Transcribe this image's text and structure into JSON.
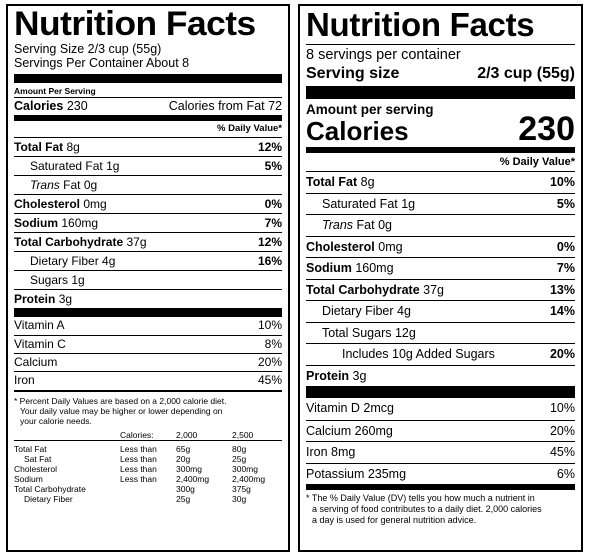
{
  "old_label": {
    "title": "Nutrition Facts",
    "serving_size": "Serving Size 2/3 cup (55g)",
    "servings": "Servings Per Container About 8",
    "amount_per_serving": "Amount Per Serving",
    "calories_label": "Calories",
    "calories_value": "230",
    "calories_from_fat": "Calories from Fat 72",
    "daily_value_header": "% Daily Value*",
    "nutrients": [
      {
        "name": "Total Fat",
        "amount": "8g",
        "pct": "12%"
      },
      {
        "name": "Saturated Fat",
        "amount": "1g",
        "pct": "5%"
      },
      {
        "name_italic": "Trans",
        "name": "Fat",
        "amount": "0g",
        "pct": ""
      },
      {
        "name": "Cholesterol",
        "amount": "0mg",
        "pct": "0%"
      },
      {
        "name": "Sodium",
        "amount": "160mg",
        "pct": "7%"
      },
      {
        "name": "Total Carbohydrate",
        "amount": "37g",
        "pct": "12%"
      },
      {
        "name": "Dietary Fiber",
        "amount": "4g",
        "pct": "16%"
      },
      {
        "name": "Sugars",
        "amount": "1g",
        "pct": ""
      },
      {
        "name": "Protein",
        "amount": "3g",
        "pct": ""
      }
    ],
    "vitamins": [
      {
        "name": "Vitamin A",
        "pct": "10%"
      },
      {
        "name": "Vitamin C",
        "pct": "8%"
      },
      {
        "name": "Calcium",
        "pct": "20%"
      },
      {
        "name": "Iron",
        "pct": "45%"
      }
    ],
    "footnote_1": "* Percent Daily Values are based on a 2,000 calorie diet.",
    "footnote_2": "Your daily value may be higher or lower depending on",
    "footnote_3": "your calorie needs.",
    "table_header": {
      "calories": "Calories:",
      "c1": "2,000",
      "c2": "2,500"
    },
    "table_rows": [
      {
        "name": "Total Fat",
        "limit": "Less than",
        "v1": "65g",
        "v2": "80g"
      },
      {
        "name": "Sat Fat",
        "limit": "Less than",
        "v1": "20g",
        "v2": "25g"
      },
      {
        "name": "Cholesterol",
        "limit": "Less than",
        "v1": "300mg",
        "v2": "300mg"
      },
      {
        "name": "Sodium",
        "limit": "Less than",
        "v1": "2,400mg",
        "v2": "2,400mg"
      },
      {
        "name": "Total Carbohydrate",
        "limit": "",
        "v1": "300g",
        "v2": "375g"
      },
      {
        "name": "Dietary Fiber",
        "limit": "",
        "v1": "25g",
        "v2": "30g"
      }
    ]
  },
  "new_label": {
    "title": "Nutrition Facts",
    "servings": "8 servings per container",
    "serving_size_label": "Serving size",
    "serving_size_value": "2/3 cup (55g)",
    "amount_per_serving": "Amount per serving",
    "calories_label": "Calories",
    "calories_value": "230",
    "daily_value_header": "% Daily Value*",
    "nutrients": [
      {
        "name": "Total Fat",
        "amount": "8g",
        "pct": "10%"
      },
      {
        "name": "Saturated Fat",
        "amount": "1g",
        "pct": "5%"
      },
      {
        "name_italic": "Trans",
        "name": "Fat",
        "amount": "0g",
        "pct": ""
      },
      {
        "name": "Cholesterol",
        "amount": "0mg",
        "pct": "0%"
      },
      {
        "name": "Sodium",
        "amount": "160mg",
        "pct": "7%"
      },
      {
        "name": "Total Carbohydrate",
        "amount": "37g",
        "pct": "13%"
      },
      {
        "name": "Dietary Fiber",
        "amount": "4g",
        "pct": "14%"
      },
      {
        "name": "Total Sugars",
        "amount": "12g",
        "pct": ""
      },
      {
        "name": "Includes 10g Added Sugars",
        "amount": "",
        "pct": "20%"
      },
      {
        "name": "Protein",
        "amount": "3g",
        "pct": ""
      }
    ],
    "vitamins": [
      {
        "name": "Vitamin D 2mcg",
        "pct": "10%"
      },
      {
        "name": "Calcium 260mg",
        "pct": "20%"
      },
      {
        "name": "Iron 8mg",
        "pct": "45%"
      },
      {
        "name": "Potassium 235mg",
        "pct": "6%"
      }
    ],
    "footnote_1": "* The % Daily Value (DV) tells you how much a nutrient in",
    "footnote_2": "a serving of food contributes to a daily diet. 2,000 calories",
    "footnote_3": "a day is used for general nutrition advice."
  }
}
